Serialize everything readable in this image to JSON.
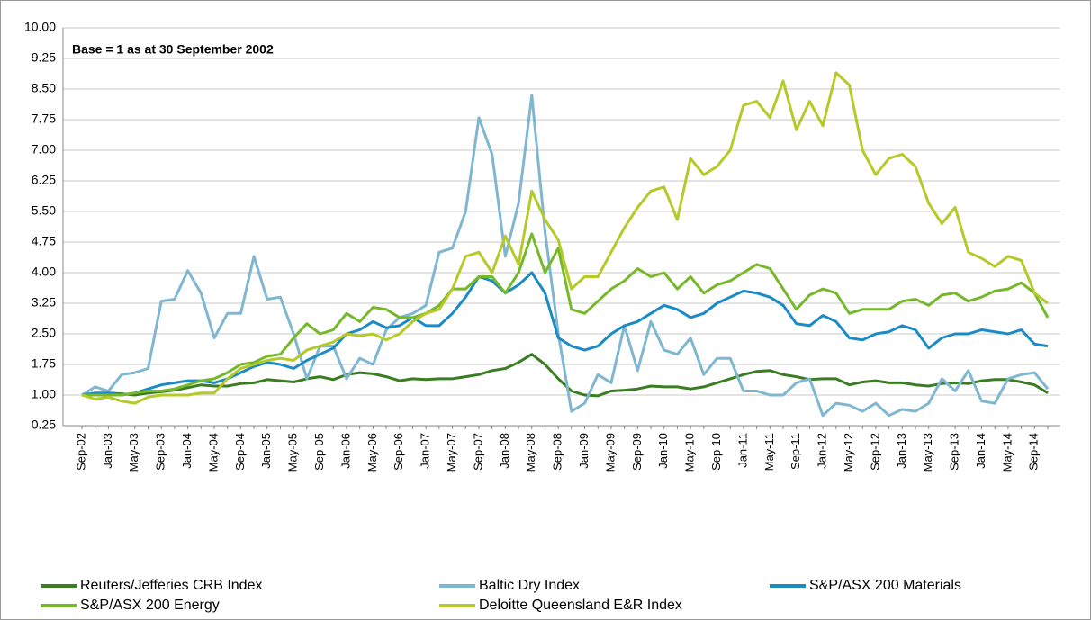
{
  "chart_data": {
    "type": "line",
    "annotation": "Base = 1 as at 30 September 2002",
    "categories": [
      "Sep-02",
      null,
      "Jan-03",
      null,
      "May-03",
      null,
      "Sep-03",
      null,
      "Jan-04",
      null,
      "May-04",
      null,
      "Sep-04",
      null,
      "Jan-05",
      null,
      "May-05",
      null,
      "Sep-05",
      null,
      "Jan-06",
      null,
      "May-06",
      null,
      "Sep-06",
      null,
      "Jan-07",
      null,
      "May-07",
      null,
      "Sep-07",
      null,
      "Jan-08",
      null,
      "May-08",
      null,
      "Sep-08",
      null,
      "Jan-09",
      null,
      "May-09",
      null,
      "Sep-09",
      null,
      "Jan-10",
      null,
      "May-10",
      null,
      "Sep-10",
      null,
      "Jan-11",
      null,
      "May-11",
      null,
      "Sep-11",
      null,
      "Jan-12",
      null,
      "May-12",
      null,
      "Sep-12",
      null,
      "Jan-13",
      null,
      "May-13",
      null,
      "Sep-13",
      null,
      "Jan-14",
      null,
      "May-14",
      null,
      "Sep-14",
      null
    ],
    "series": [
      {
        "name": "Reuters/Jefferies CRB Index",
        "color": "#3a7d22",
        "values": [
          1.0,
          1.02,
          1.05,
          1.03,
          1.0,
          1.05,
          1.08,
          1.12,
          1.18,
          1.25,
          1.22,
          1.22,
          1.28,
          1.3,
          1.38,
          1.35,
          1.32,
          1.4,
          1.45,
          1.38,
          1.5,
          1.55,
          1.52,
          1.45,
          1.35,
          1.4,
          1.38,
          1.4,
          1.4,
          1.45,
          1.5,
          1.6,
          1.65,
          1.8,
          2.0,
          1.75,
          1.4,
          1.1,
          1.0,
          0.98,
          1.1,
          1.12,
          1.15,
          1.22,
          1.2,
          1.2,
          1.15,
          1.2,
          1.3,
          1.4,
          1.5,
          1.58,
          1.6,
          1.5,
          1.45,
          1.38,
          1.4,
          1.4,
          1.25,
          1.32,
          1.35,
          1.3,
          1.3,
          1.25,
          1.22,
          1.28,
          1.3,
          1.28,
          1.35,
          1.38,
          1.38,
          1.32,
          1.25,
          1.05
        ]
      },
      {
        "name": "Baltic Dry Index",
        "color": "#7fb6d0",
        "values": [
          1.0,
          1.2,
          1.1,
          1.5,
          1.55,
          1.65,
          3.3,
          3.35,
          4.05,
          3.5,
          2.4,
          3.0,
          3.0,
          4.4,
          3.35,
          3.4,
          2.5,
          1.4,
          2.2,
          2.2,
          1.4,
          1.9,
          1.75,
          2.6,
          2.9,
          3.0,
          3.2,
          4.5,
          4.6,
          5.5,
          7.8,
          6.9,
          4.4,
          5.7,
          8.35,
          5.0,
          2.5,
          0.6,
          0.8,
          1.5,
          1.3,
          2.7,
          1.6,
          2.8,
          2.1,
          2.0,
          2.4,
          1.5,
          1.9,
          1.9,
          1.1,
          1.1,
          1.0,
          1.0,
          1.3,
          1.4,
          0.5,
          0.8,
          0.75,
          0.6,
          0.8,
          0.5,
          0.65,
          0.6,
          0.8,
          1.4,
          1.1,
          1.6,
          0.85,
          0.8,
          1.4,
          1.5,
          1.55,
          1.15
        ]
      },
      {
        "name": "S&P/ASX 200 Materials",
        "color": "#1a8bc4",
        "values": [
          1,
          1.05,
          1.05,
          1.0,
          1.05,
          1.15,
          1.25,
          1.3,
          1.35,
          1.35,
          1.3,
          1.4,
          1.55,
          1.7,
          1.8,
          1.75,
          1.65,
          1.85,
          2.0,
          2.15,
          2.5,
          2.6,
          2.8,
          2.65,
          2.7,
          2.9,
          2.7,
          2.7,
          3.0,
          3.4,
          3.9,
          3.8,
          3.5,
          3.7,
          4.0,
          3.5,
          2.4,
          2.2,
          2.1,
          2.2,
          2.5,
          2.7,
          2.8,
          3.0,
          3.2,
          3.1,
          2.9,
          3.0,
          3.25,
          3.4,
          3.55,
          3.5,
          3.4,
          3.2,
          2.75,
          2.7,
          2.95,
          2.8,
          2.4,
          2.35,
          2.5,
          2.55,
          2.7,
          2.6,
          2.15,
          2.4,
          2.5,
          2.5,
          2.6,
          2.55,
          2.5,
          2.6,
          2.25,
          2.2
        ]
      },
      {
        "name": "S&P/ASX 200 Energy",
        "color": "#76b82a",
        "values": [
          1,
          1.0,
          1.0,
          1.0,
          1.05,
          1.1,
          1.1,
          1.15,
          1.25,
          1.35,
          1.4,
          1.55,
          1.75,
          1.8,
          1.95,
          2.0,
          2.4,
          2.75,
          2.5,
          2.6,
          3.0,
          2.8,
          3.15,
          3.1,
          2.9,
          2.9,
          3.0,
          3.2,
          3.6,
          3.6,
          3.9,
          3.9,
          3.5,
          4.0,
          4.95,
          4.0,
          4.6,
          3.1,
          3.0,
          3.3,
          3.6,
          3.8,
          4.1,
          3.9,
          4.0,
          3.6,
          3.9,
          3.5,
          3.7,
          3.8,
          4.0,
          4.2,
          4.1,
          3.6,
          3.1,
          3.45,
          3.6,
          3.5,
          3.0,
          3.1,
          3.1,
          3.1,
          3.3,
          3.35,
          3.2,
          3.45,
          3.5,
          3.3,
          3.4,
          3.55,
          3.6,
          3.75,
          3.5,
          2.9
        ]
      },
      {
        "name": "Deloitte Queensland E&R Index",
        "color": "#b5c928",
        "values": [
          1,
          0.9,
          0.95,
          0.85,
          0.8,
          0.95,
          1.0,
          1.0,
          1.0,
          1.05,
          1.05,
          1.4,
          1.65,
          1.75,
          1.85,
          1.9,
          1.85,
          2.1,
          2.2,
          2.3,
          2.5,
          2.45,
          2.5,
          2.35,
          2.5,
          2.8,
          3.0,
          3.1,
          3.6,
          4.4,
          4.5,
          4.0,
          4.9,
          4.2,
          6.0,
          5.3,
          4.8,
          3.6,
          3.9,
          3.9,
          4.5,
          5.1,
          5.6,
          6.0,
          6.1,
          5.3,
          6.8,
          6.4,
          6.6,
          7.0,
          8.1,
          8.2,
          7.8,
          8.7,
          7.5,
          8.2,
          7.6,
          8.9,
          8.6,
          7.0,
          6.4,
          6.8,
          6.9,
          6.6,
          5.7,
          5.2,
          5.6,
          4.5,
          4.35,
          4.15,
          4.4,
          4.3,
          3.5,
          3.25
        ]
      }
    ],
    "ylim": [
      0.25,
      10
    ],
    "yticks": [
      {
        "value": 0.25,
        "label": "0.25"
      },
      {
        "value": 1,
        "label": "1.00"
      },
      {
        "value": 1.75,
        "label": "1.75"
      },
      {
        "value": 2.5,
        "label": "2.50"
      },
      {
        "value": 3.25,
        "label": "3.25"
      },
      {
        "value": 4,
        "label": "4.00"
      },
      {
        "value": 4.75,
        "label": "4.75"
      },
      {
        "value": 5.5,
        "label": "5.50"
      },
      {
        "value": 6.25,
        "label": "6.25"
      },
      {
        "value": 7,
        "label": "7.00"
      },
      {
        "value": 7.75,
        "label": "7.75"
      },
      {
        "value": 8.5,
        "label": "8.50"
      },
      {
        "value": 9.25,
        "label": "9.25"
      },
      {
        "value": 10,
        "label": "10.00"
      }
    ],
    "grid": true,
    "legend": "bottom"
  }
}
